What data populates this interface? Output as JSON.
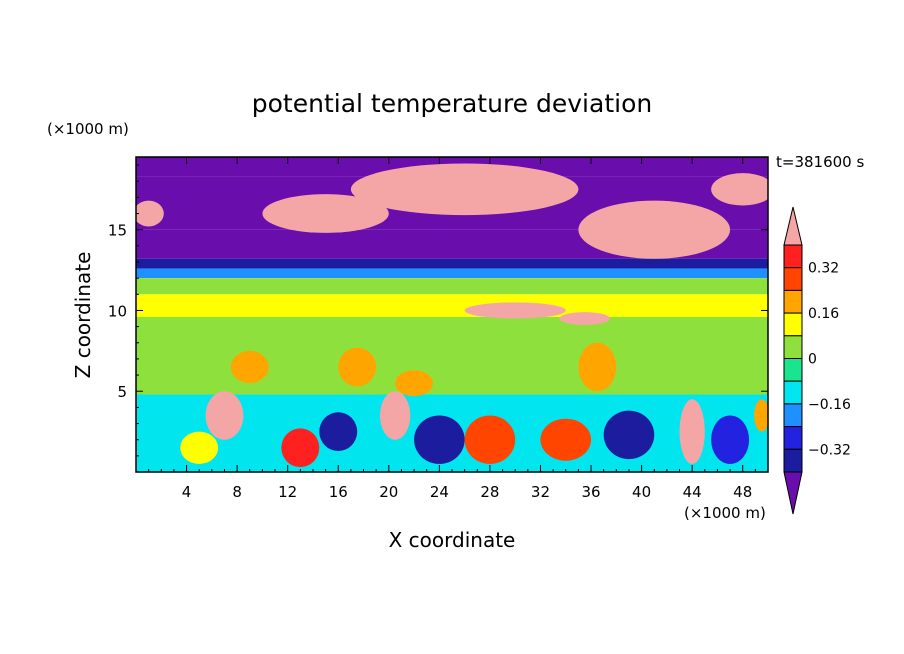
{
  "chart_data": {
    "type": "heatmap",
    "title": "potential temperature deviation",
    "xlabel": "X coordinate",
    "ylabel": "Z coordinate",
    "x_unit": "(×1000 m)",
    "y_unit": "(×1000 m)",
    "time_label": "t=381600 s",
    "xlim": [
      0,
      50
    ],
    "ylim": [
      0,
      19.5
    ],
    "x_ticks": [
      4,
      8,
      12,
      16,
      20,
      24,
      28,
      32,
      36,
      40,
      44,
      48
    ],
    "y_ticks": [
      5,
      10,
      15
    ],
    "colorbar": {
      "labels": [
        "0.32",
        "0.16",
        "0",
        "−0.16",
        "−0.32"
      ],
      "label_values": [
        0.32,
        0.16,
        0,
        -0.16,
        -0.32
      ],
      "levels": [
        -0.4,
        -0.32,
        -0.24,
        -0.16,
        -0.08,
        0,
        0.08,
        0.16,
        0.24,
        0.32,
        0.4
      ],
      "colors": [
        "#6a0dad",
        "#1c1c9e",
        "#2222e0",
        "#1e90ff",
        "#00e5ee",
        "#19e68c",
        "#8ee03c",
        "#ffff00",
        "#ffa500",
        "#ff4500",
        "#ff2020",
        "#f4a6a6"
      ],
      "extends": "both"
    },
    "regions": [
      {
        "kind": "band",
        "z": [
          18.3,
          19.5
        ],
        "value": -0.45
      },
      {
        "kind": "band",
        "z": [
          15.0,
          18.3
        ],
        "value": -0.45
      },
      {
        "kind": "band",
        "z": [
          13.2,
          15.0
        ],
        "value": -0.42
      },
      {
        "kind": "band",
        "z": [
          12.6,
          13.2
        ],
        "value": -0.35
      },
      {
        "kind": "band",
        "z": [
          12.0,
          12.6
        ],
        "value": -0.2
      },
      {
        "kind": "band",
        "z": [
          11.0,
          12.0
        ],
        "value": 0.04
      },
      {
        "kind": "band",
        "z": [
          9.6,
          11.0
        ],
        "value": 0.1
      },
      {
        "kind": "band",
        "z": [
          4.8,
          9.6
        ],
        "value": 0.02
      },
      {
        "kind": "band",
        "z": [
          0,
          4.8
        ],
        "value": -0.1
      },
      {
        "kind": "blob",
        "x": 26,
        "z": 17.5,
        "rx": 9,
        "rz": 1.6,
        "value": 0.45
      },
      {
        "kind": "blob",
        "x": 15,
        "z": 16.0,
        "rx": 5,
        "rz": 1.2,
        "value": 0.45
      },
      {
        "kind": "blob",
        "x": 41,
        "z": 15.0,
        "rx": 6,
        "rz": 1.8,
        "value": 0.45
      },
      {
        "kind": "blob",
        "x": 48,
        "z": 17.5,
        "rx": 2.5,
        "rz": 1.0,
        "value": 0.45
      },
      {
        "kind": "blob",
        "x": 1,
        "z": 16.0,
        "rx": 1.2,
        "rz": 0.8,
        "value": 0.45
      },
      {
        "kind": "blob",
        "x": 30,
        "z": 10.0,
        "rx": 4,
        "rz": 0.5,
        "value": 0.45
      },
      {
        "kind": "blob",
        "x": 35.5,
        "z": 9.5,
        "rx": 2,
        "rz": 0.4,
        "value": 0.45
      },
      {
        "kind": "blob",
        "x": 9,
        "z": 6.5,
        "rx": 1.5,
        "rz": 1.0,
        "value": 0.2
      },
      {
        "kind": "blob",
        "x": 17.5,
        "z": 6.5,
        "rx": 1.5,
        "rz": 1.2,
        "value": 0.2
      },
      {
        "kind": "blob",
        "x": 22,
        "z": 5.5,
        "rx": 1.5,
        "rz": 0.8,
        "value": 0.2
      },
      {
        "kind": "blob",
        "x": 36.5,
        "z": 6.5,
        "rx": 1.5,
        "rz": 1.5,
        "value": 0.2
      },
      {
        "kind": "blob",
        "x": 7,
        "z": 3.5,
        "rx": 1.5,
        "rz": 1.5,
        "value": 0.45
      },
      {
        "kind": "blob",
        "x": 20.5,
        "z": 3.5,
        "rx": 1.2,
        "rz": 1.5,
        "value": 0.45
      },
      {
        "kind": "blob",
        "x": 44,
        "z": 2.5,
        "rx": 1.0,
        "rz": 2.0,
        "value": 0.45
      },
      {
        "kind": "blob",
        "x": 13,
        "z": 1.5,
        "rx": 1.5,
        "rz": 1.2,
        "value": 0.35
      },
      {
        "kind": "blob",
        "x": 28,
        "z": 2.0,
        "rx": 2.0,
        "rz": 1.5,
        "value": 0.3
      },
      {
        "kind": "blob",
        "x": 34,
        "z": 2.0,
        "rx": 2.0,
        "rz": 1.3,
        "value": 0.3
      },
      {
        "kind": "blob",
        "x": 24,
        "z": 2.0,
        "rx": 2.0,
        "rz": 1.5,
        "value": -0.4
      },
      {
        "kind": "blob",
        "x": 39,
        "z": 2.3,
        "rx": 2.0,
        "rz": 1.5,
        "value": -0.4
      },
      {
        "kind": "blob",
        "x": 16,
        "z": 2.5,
        "rx": 1.5,
        "rz": 1.2,
        "value": -0.35
      },
      {
        "kind": "blob",
        "x": 47,
        "z": 2.0,
        "rx": 1.5,
        "rz": 1.5,
        "value": -0.3
      },
      {
        "kind": "blob",
        "x": 5,
        "z": 1.5,
        "rx": 1.5,
        "rz": 1.0,
        "value": 0.15
      },
      {
        "kind": "blob",
        "x": 49.5,
        "z": 3.5,
        "rx": 0.6,
        "rz": 1.0,
        "value": 0.2
      }
    ]
  }
}
